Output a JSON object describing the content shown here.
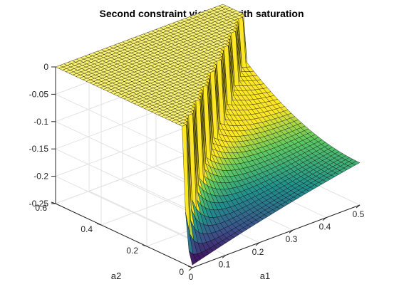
{
  "chart_data": {
    "type": "surface",
    "title": "Second constraint violation with saturation",
    "xlabel": "a1",
    "ylabel": "a2",
    "zlabel": "",
    "xlim": [
      0,
      0.5
    ],
    "ylim": [
      0,
      0.6
    ],
    "zlim": [
      -0.25,
      0
    ],
    "x_ticks": [
      "0",
      "0.1",
      "0.2",
      "0.3",
      "0.4",
      "0.5"
    ],
    "y_ticks": [
      "0",
      "0.2",
      "0.4",
      "0.6"
    ],
    "z_ticks": [
      "0",
      "-0.05",
      "-0.1",
      "-0.15",
      "-0.2",
      "-0.25"
    ],
    "grid": true,
    "colormap": [
      "#440154",
      "#3b528b",
      "#21918c",
      "#5ec962",
      "#fde725"
    ],
    "edge_color": "#000000",
    "surface_description_points": [
      {
        "a1": 0.0,
        "a2": 0.6,
        "z": -0.005
      },
      {
        "a1": 0.5,
        "a2": 0.6,
        "z": 0
      },
      {
        "a1": 0.0,
        "a2": 0.0,
        "z": 0
      },
      {
        "a1": 0.5,
        "a2": 0.0,
        "z": -0.155
      },
      {
        "a1": 0.02,
        "a2": 0.02,
        "z": -0.245
      }
    ]
  }
}
